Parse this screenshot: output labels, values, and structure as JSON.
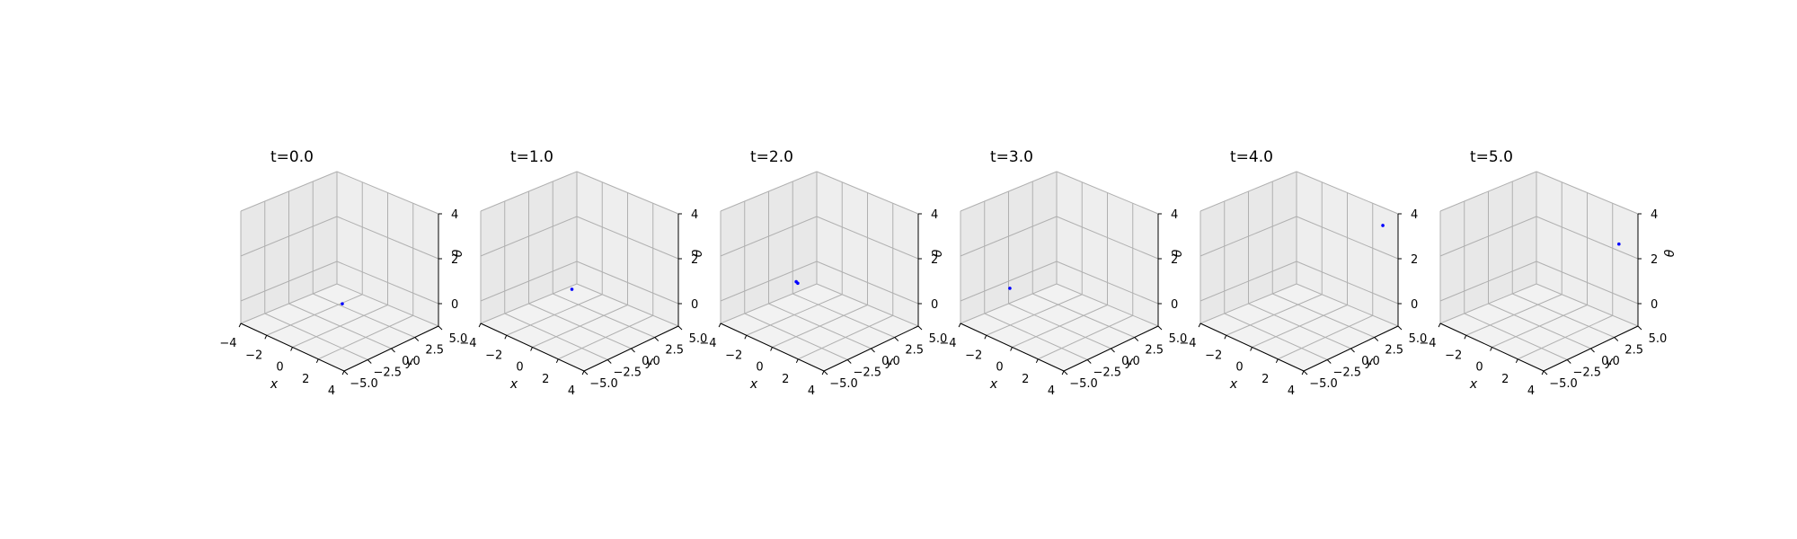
{
  "figure": {
    "background": "#ffffff",
    "pane_color": "#f2f2f2",
    "grid_color": "#b0b0b0",
    "point_color": "#0000ff"
  },
  "chart_data": [
    {
      "type": "scatter3d",
      "title": "t=0.0",
      "xlabel": "x",
      "ylabel": "y",
      "zlabel": "",
      "xlim": [
        -4,
        4
      ],
      "ylim": [
        -5,
        5
      ],
      "zlim": [
        -1,
        4
      ],
      "xticks": [
        "−4",
        "−2",
        "0",
        "2",
        "4"
      ],
      "yticks": [
        "−5.0",
        "−2.5",
        "0.0",
        "2.5",
        "5.0"
      ],
      "zticks": [
        "0",
        "2",
        "4"
      ],
      "points": [
        {
          "x": 0.1,
          "y": 0.1,
          "z": 0.0
        }
      ]
    },
    {
      "type": "scatter3d",
      "title": "t=1.0",
      "xlabel": "x",
      "ylabel": "y",
      "zlabel": "θ",
      "xlim": [
        -4,
        4
      ],
      "ylim": [
        -5,
        5
      ],
      "zlim": [
        -1,
        4
      ],
      "xticks": [
        "−4",
        "−2",
        "0",
        "2",
        "4"
      ],
      "yticks": [
        "−5.0",
        "−2.5",
        "0.0",
        "2.5",
        "5.0"
      ],
      "zticks": [
        "0",
        "2",
        "4"
      ],
      "points": [
        {
          "x": -1.6,
          "y": 1.3,
          "z": 0.0
        }
      ]
    },
    {
      "type": "scatter3d",
      "title": "t=2.0",
      "xlabel": "x",
      "ylabel": "y",
      "zlabel": "θ",
      "xlim": [
        -4,
        4
      ],
      "ylim": [
        -5,
        5
      ],
      "zlim": [
        -1,
        4
      ],
      "xticks": [
        "−4",
        "−2",
        "0",
        "2",
        "4"
      ],
      "yticks": [
        "−5.0",
        "−2.5",
        "0.0",
        "2.5",
        "5.0"
      ],
      "zticks": [
        "0",
        "2",
        "4"
      ],
      "points": [
        {
          "x": -2.9,
          "y": 1.4,
          "z": 0.0
        },
        {
          "x": -2.7,
          "y": 1.3,
          "z": 0.0
        }
      ]
    },
    {
      "type": "scatter3d",
      "title": "t=3.0",
      "xlabel": "x",
      "ylabel": "y",
      "zlabel": "θ",
      "xlim": [
        -4,
        4
      ],
      "ylim": [
        -5,
        5
      ],
      "zlim": [
        -1,
        4
      ],
      "xticks": [
        "−4",
        "−2",
        "0",
        "2",
        "4"
      ],
      "yticks": [
        "−5.0",
        "−2.5",
        "0.0",
        "2.5",
        "5.0"
      ],
      "zticks": [
        "0",
        "2",
        "4"
      ],
      "points": [
        {
          "x": -3.3,
          "y": -0.8,
          "z": 0.0
        }
      ]
    },
    {
      "type": "scatter3d",
      "title": "t=4.0",
      "xlabel": "x",
      "ylabel": "y",
      "zlabel": "θ",
      "xlim": [
        -4,
        4
      ],
      "ylim": [
        -5,
        5
      ],
      "zlim": [
        -1,
        4
      ],
      "xticks": [
        "−4",
        "−2",
        "0",
        "2",
        "4"
      ],
      "yticks": [
        "−5.0",
        "−2.5",
        "0.0",
        "2.5",
        "5.0"
      ],
      "zticks": [
        "0",
        "2",
        "4"
      ],
      "points": [
        {
          "x": 2.8,
          "y": 5.0,
          "z": 3.2
        }
      ]
    },
    {
      "type": "scatter3d",
      "title": "t=5.0",
      "xlabel": "x",
      "ylabel": "y",
      "zlabel": "θ",
      "xlim": [
        -4,
        4
      ],
      "ylim": [
        -5,
        5
      ],
      "zlim": [
        -1,
        4
      ],
      "xticks": [
        "−4",
        "−2",
        "0",
        "2",
        "4"
      ],
      "yticks": [
        "−5.0",
        "−2.5",
        "0.0",
        "2.5",
        "5.0"
      ],
      "zticks": [
        "0",
        "2",
        "4"
      ],
      "points": [
        {
          "x": 2.5,
          "y": 5.0,
          "z": 2.3
        }
      ]
    }
  ]
}
